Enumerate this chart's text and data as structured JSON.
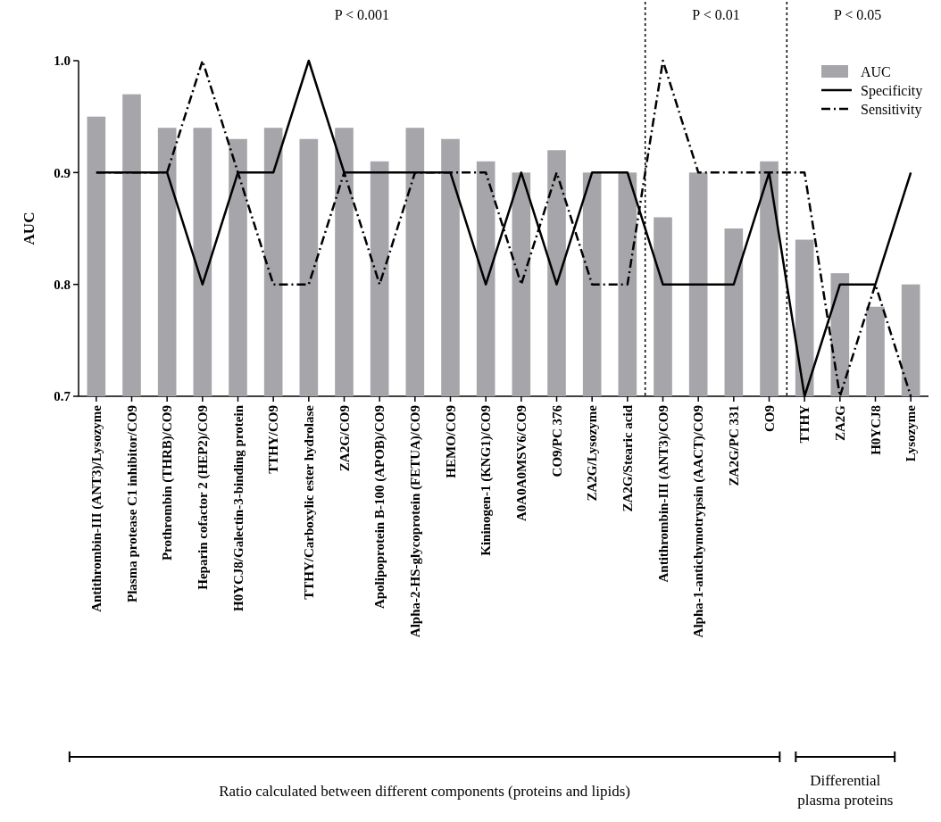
{
  "chart_data": {
    "type": "bar",
    "ylabel": "AUC",
    "categories": [
      "Antithrombin-III (ANT3)/Lysozyme",
      "Plasma protease C1 inhibitor/CO9",
      "Prothrombin (THRB)/CO9",
      "Heparin cofactor 2 (HEP2)/CO9",
      "H0YCJ8/Galectin-3-binding protein",
      "TTHY/CO9",
      "TTHY/Carboxylic ester hydrolase",
      "ZA2G/CO9",
      "Apolipoprotein B-100 (APOB)/CO9",
      "Alpha-2-HS-glycoprotein (FETUA)/CO9",
      "HEMO/CO9",
      "Kininogen-1 (KNG1)/CO9",
      "A0A0A0MSV6/CO9",
      "CO9/PC 376",
      "ZA2G/Lysozyme",
      "ZA2G/Stearic acid",
      "Antithrombin-III (ANT3)/CO9",
      "Alpha-1-antichymotrypsin (AACT)/CO9",
      "ZA2G/PC 331",
      "CO9",
      "TTHY",
      "ZA2G",
      "H0YCJ8",
      "Lysozyme"
    ],
    "series": [
      {
        "name": "AUC",
        "color": "#a6a6aa",
        "values": [
          0.95,
          0.97,
          0.94,
          0.94,
          0.93,
          0.94,
          0.93,
          0.94,
          0.91,
          0.94,
          0.93,
          0.91,
          0.9,
          0.92,
          0.9,
          0.9,
          0.86,
          0.9,
          0.85,
          0.91,
          0.84,
          0.81,
          0.78,
          0.8
        ]
      },
      {
        "name": "Specificity",
        "type": "line",
        "color": "#000000",
        "line_style": "solid",
        "values": [
          0.9,
          0.9,
          0.9,
          0.8,
          0.9,
          0.9,
          1.0,
          0.9,
          0.9,
          0.9,
          0.9,
          0.8,
          0.9,
          0.8,
          0.9,
          0.9,
          0.8,
          0.8,
          0.8,
          0.9,
          0.7,
          0.8,
          0.8,
          0.9
        ]
      },
      {
        "name": "Sensitivity",
        "type": "line",
        "color": "#000000",
        "line_style": "dashdot",
        "values": [
          0.9,
          0.9,
          0.9,
          1.0,
          0.9,
          0.8,
          0.8,
          0.9,
          0.8,
          0.9,
          0.9,
          0.9,
          0.8,
          0.9,
          0.8,
          0.8,
          1.0,
          0.9,
          0.9,
          0.9,
          0.9,
          0.7,
          0.8,
          0.7
        ]
      }
    ],
    "ylim": [
      0.7,
      1.0
    ],
    "yticks": [
      0.7,
      0.8,
      0.9,
      {
        "value": 1.0,
        "label": "1.0"
      }
    ],
    "legend": "top right",
    "annotations": [
      "P < 0.001",
      "P < 0.01",
      "P < 0.05",
      "Ratio calculated between different components (proteins and lipids)",
      "Differential plasma proteins"
    ]
  }
}
